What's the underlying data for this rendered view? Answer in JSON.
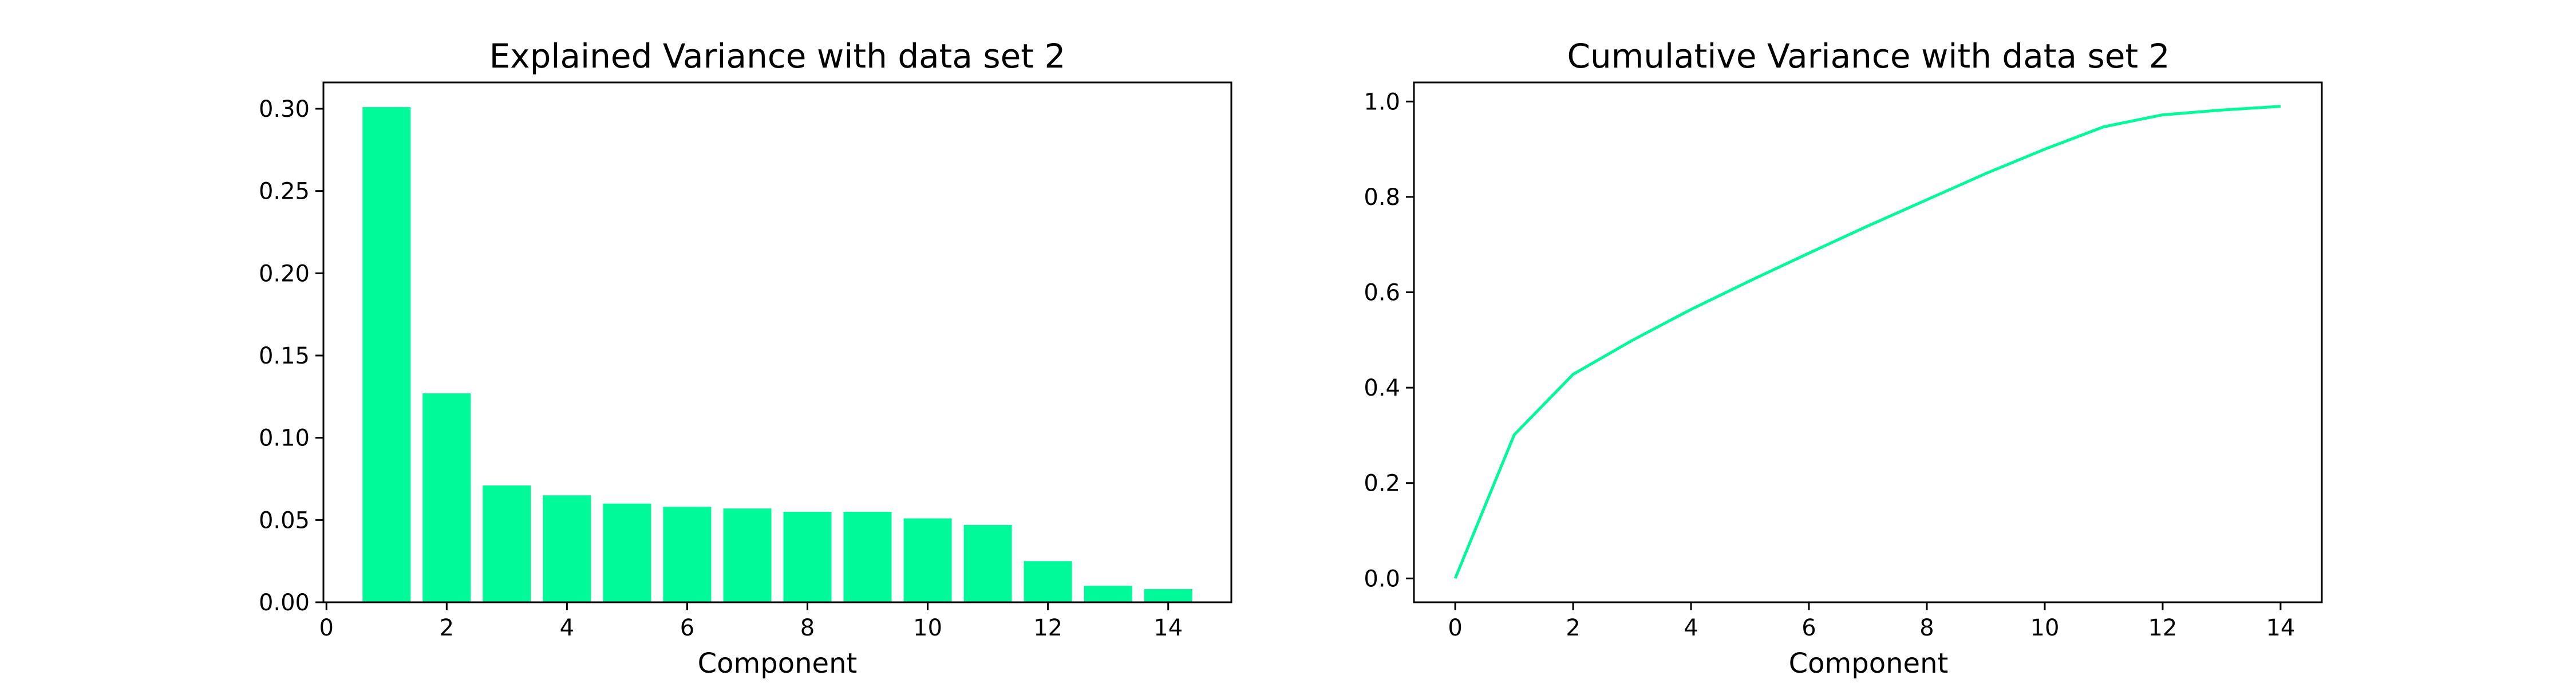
{
  "chart_data": [
    {
      "type": "bar",
      "title": "Explained Variance with data set 2",
      "xlabel": "Component",
      "ylabel": "",
      "x": [
        1,
        2,
        3,
        4,
        5,
        6,
        7,
        8,
        9,
        10,
        11,
        12,
        13,
        14
      ],
      "values": [
        0.301,
        0.127,
        0.071,
        0.065,
        0.06,
        0.058,
        0.057,
        0.055,
        0.055,
        0.051,
        0.047,
        0.025,
        0.01,
        0.008
      ],
      "xlim": [
        -0.05,
        15.05
      ],
      "ylim": [
        0,
        0.316
      ],
      "xticks": [
        0,
        2,
        4,
        6,
        8,
        10,
        12,
        14
      ],
      "xtick_labels": [
        "0",
        "2",
        "4",
        "6",
        "8",
        "10",
        "12",
        "14"
      ],
      "yticks": [
        0.0,
        0.05,
        0.1,
        0.15,
        0.2,
        0.25,
        0.3
      ],
      "ytick_labels": [
        "0.00",
        "0.05",
        "0.10",
        "0.15",
        "0.20",
        "0.25",
        "0.30"
      ],
      "grid": false,
      "color": "#00fa9a"
    },
    {
      "type": "line",
      "title": "Cumulative Variance with data set 2",
      "xlabel": "Component",
      "ylabel": "",
      "x": [
        0,
        1,
        2,
        3,
        4,
        5,
        6,
        7,
        8,
        9,
        10,
        11,
        12,
        13,
        14
      ],
      "values": [
        0.0,
        0.301,
        0.428,
        0.499,
        0.564,
        0.624,
        0.682,
        0.739,
        0.794,
        0.849,
        0.9,
        0.947,
        0.972,
        0.982,
        0.99
      ],
      "xlim": [
        -0.7,
        14.7
      ],
      "ylim": [
        -0.05,
        1.04
      ],
      "xticks": [
        0,
        2,
        4,
        6,
        8,
        10,
        12,
        14
      ],
      "xtick_labels": [
        "0",
        "2",
        "4",
        "6",
        "8",
        "10",
        "12",
        "14"
      ],
      "yticks": [
        0.0,
        0.2,
        0.4,
        0.6,
        0.8,
        1.0
      ],
      "ytick_labels": [
        "0.0",
        "0.2",
        "0.4",
        "0.6",
        "0.8",
        "1.0"
      ],
      "grid": false,
      "color": "#00fa9a"
    }
  ]
}
